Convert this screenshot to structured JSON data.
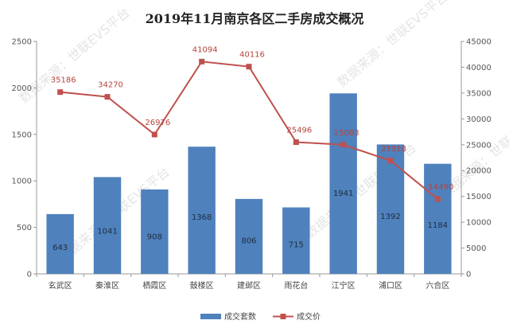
{
  "chart_data": {
    "type": "bar",
    "title": "2019年11月南京各区二手房成交概况",
    "categories": [
      "玄武区",
      "秦淮区",
      "栖霞区",
      "鼓楼区",
      "建邺区",
      "雨花台",
      "江宁区",
      "浦口区",
      "六合区"
    ],
    "series": [
      {
        "name": "成交套数",
        "type": "bar",
        "axis": "left",
        "color": "#4f81bd",
        "values": [
          643,
          1041,
          908,
          1368,
          806,
          715,
          1941,
          1392,
          1184
        ]
      },
      {
        "name": "成交价",
        "type": "line",
        "axis": "right",
        "color": "#c0504d",
        "values": [
          35186,
          34270,
          26976,
          41094,
          40116,
          25496,
          25003,
          21918,
          14490
        ]
      }
    ],
    "y_left": {
      "min": 0,
      "max": 2500,
      "ticks": [
        "0",
        "500",
        "1000",
        "1500",
        "2000",
        "2500"
      ]
    },
    "y_right": {
      "min": 0,
      "max": 45000,
      "ticks": [
        "0",
        "5000",
        "10000",
        "15000",
        "20000",
        "25000",
        "30000",
        "35000",
        "40000",
        "45000"
      ]
    },
    "grid": false,
    "legend": "bottom",
    "watermark": [
      "数据来源：世联EVS平台",
      "数据来源：世联EVS平台",
      "数据来源：世联EVS平台",
      "数据来源：世联EVS平台",
      "数据来源：世联EVS平台"
    ]
  }
}
